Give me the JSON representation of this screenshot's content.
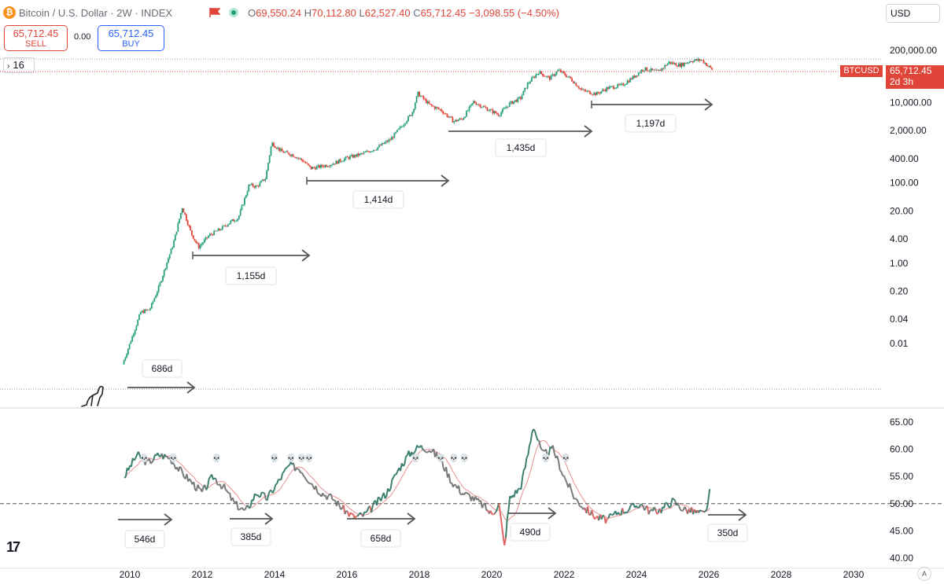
{
  "header": {
    "symbol": "Bitcoin / U.S. Dollar · 2W · INDEX",
    "o_label": "O",
    "o_value": "69,550.24",
    "h_label": "H",
    "h_value": "70,112.80",
    "l_label": "L",
    "l_value": "62,527.40",
    "c_label": "C",
    "c_value": "65,712.45",
    "change": "−3,098.55 (−4.50%)"
  },
  "trade": {
    "sell_price": "65,712.45",
    "sell_label": "SELL",
    "spread": "0.00",
    "buy_price": "65,712.45",
    "buy_label": "BUY"
  },
  "currency": "USD",
  "indicator_count": "16",
  "price_tag": {
    "symbol": "BTCUSD",
    "price": "65,712.45",
    "countdown": "2d 3h",
    "color": "#e0453a"
  },
  "icons": {
    "logo": "bitcoin-icon",
    "flag": "flag-icon",
    "status": "market-status-dot-icon",
    "dinosaur": "dinosaur-icon",
    "tradingview": "tradingview-logo-icon",
    "skull": "skull-icon",
    "auto": "auto-scale-icon"
  },
  "colors": {
    "up": "#26a17b",
    "down": "#e0453a",
    "rsi_up": "#3d7f70",
    "rsi_down": "#e06666",
    "rsi_neutral": "#7a7a7a",
    "rsi_ma": "#e89090",
    "arrow": "#555555"
  },
  "chart_data": [
    {
      "type": "line",
      "chart_kind": "candlestick",
      "title": "",
      "scale": "log",
      "ylim": [
        0.002,
        260000
      ],
      "y_ticks": [
        "200,000.00",
        "10,000.00",
        "2,000.00",
        "400.00",
        "100.00",
        "20.00",
        "4.00",
        "1.00",
        "0.20",
        "0.04",
        "0.01"
      ],
      "y_tick_values": [
        200000,
        10000,
        2000,
        400,
        100,
        20,
        4,
        1,
        0.2,
        0.04,
        0.01
      ],
      "x_ticks": [
        "2010",
        "2012",
        "2014",
        "2016",
        "2018",
        "2020",
        "2022",
        "2024",
        "2026",
        "2028",
        "2030"
      ],
      "x_tick_values": [
        2010,
        2012,
        2014,
        2016,
        2018,
        2020,
        2022,
        2024,
        2026,
        2028,
        2030
      ],
      "xlim": [
        2009.6,
        2030.9
      ],
      "series": [
        {
          "x": [
            2009.8,
            2010.3,
            2010.55,
            2010.8,
            2011.0,
            2011.2,
            2011.45,
            2011.7,
            2011.9,
            2012.2,
            2012.5,
            2012.8,
            2013.0,
            2013.3,
            2013.5,
            2013.75,
            2013.92,
            2014.2,
            2014.5,
            2014.8,
            2015.0,
            2015.3,
            2015.6,
            2016.0,
            2016.4,
            2016.8,
            2017.2,
            2017.5,
            2017.8,
            2017.96,
            2018.3,
            2018.6,
            2018.95,
            2019.2,
            2019.5,
            2019.8,
            2020.2,
            2020.5,
            2020.8,
            2021.0,
            2021.3,
            2021.6,
            2021.85,
            2022.2,
            2022.5,
            2022.9,
            2023.2,
            2023.6,
            2023.9,
            2024.2,
            2024.6,
            2024.9,
            2025.2,
            2025.5,
            2025.8,
            2026.1
          ],
          "values": [
            0.003,
            0.06,
            0.07,
            0.25,
            0.9,
            3.0,
            25,
            5.5,
            2.5,
            5.0,
            7.0,
            11.0,
            13.5,
            90,
            80,
            130,
            1000,
            600,
            500,
            350,
            230,
            260,
            300,
            420,
            520,
            720,
            1200,
            2500,
            5500,
            17000,
            8500,
            6500,
            3400,
            4000,
            10500,
            7500,
            5000,
            9500,
            13000,
            30000,
            58000,
            40000,
            64000,
            38000,
            20000,
            16500,
            23000,
            27000,
            42000,
            70000,
            58000,
            100000,
            85000,
            110000,
            115000,
            65712.45
          ]
        }
      ],
      "annotations": [
        {
          "label": "686d"
        },
        {
          "label": "1,155d"
        },
        {
          "label": "1,414d"
        },
        {
          "label": "1,435d"
        },
        {
          "label": "1,197d"
        }
      ]
    },
    {
      "type": "line",
      "title": "",
      "ylim": [
        40,
        66
      ],
      "y_ticks": [
        "65.00",
        "60.00",
        "55.00",
        "50.00",
        "45.00",
        "40.00"
      ],
      "y_tick_values": [
        65,
        60,
        55,
        50,
        45,
        40
      ],
      "midline": 50,
      "series": [
        {
          "x": [
            2009.85,
            2010.2,
            2010.5,
            2010.8,
            2011.1,
            2011.4,
            2011.7,
            2012.0,
            2012.3,
            2012.6,
            2012.9,
            2013.2,
            2013.5,
            2013.8,
            2014.1,
            2014.4,
            2014.7,
            2015.0,
            2015.3,
            2015.6,
            2015.9,
            2016.2,
            2016.5,
            2016.8,
            2017.1,
            2017.4,
            2017.7,
            2018.0,
            2018.3,
            2018.6,
            2018.9,
            2019.2,
            2019.5,
            2019.8,
            2020.0,
            2020.2,
            2020.35,
            2020.5,
            2020.8,
            2021.0,
            2021.15,
            2021.4,
            2021.7,
            2022.0,
            2022.3,
            2022.6,
            2022.9,
            2023.2,
            2023.5,
            2023.8,
            2024.1,
            2024.4,
            2024.7,
            2025.0,
            2025.3,
            2025.6,
            2025.9,
            2026.05
          ],
          "values": [
            55,
            59,
            57.5,
            59,
            58.5,
            56,
            54,
            52,
            55,
            53,
            50,
            48.5,
            52,
            51,
            54,
            57,
            56.5,
            54,
            52,
            51,
            49,
            47.5,
            48,
            50,
            52,
            56,
            59,
            60.5,
            60,
            58,
            54,
            52,
            51,
            49.5,
            48,
            50,
            42,
            51,
            53,
            59,
            64.5,
            59,
            60,
            55,
            51,
            49,
            47.5,
            47,
            48.5,
            49,
            50,
            48.5,
            49,
            50.5,
            49,
            48.5,
            48,
            52.8
          ]
        }
      ],
      "annotations": [
        {
          "label": "546d"
        },
        {
          "label": "385d"
        },
        {
          "label": "658d"
        },
        {
          "label": "490d"
        },
        {
          "label": "350d"
        }
      ],
      "skull_markers_x": [
        2010.4,
        2011.2,
        2012.4,
        2014.0,
        2014.45,
        2014.75,
        2014.95,
        2017.9,
        2018.6,
        2018.95,
        2019.25,
        2021.5,
        2022.05
      ]
    }
  ],
  "x_axis": {
    "labels": [
      "2010",
      "2012",
      "2014",
      "2016",
      "2018",
      "2020",
      "2022",
      "2024",
      "2026",
      "2028",
      "2030"
    ],
    "auto_label": "A"
  }
}
